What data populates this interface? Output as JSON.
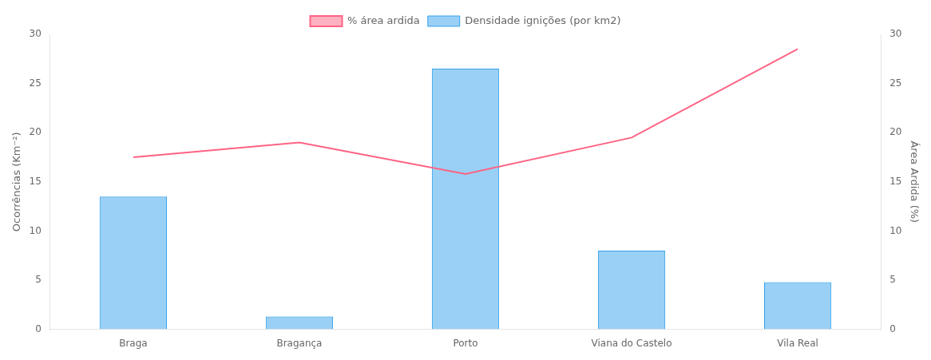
{
  "chart_data": {
    "type": "bar",
    "categories": [
      "Braga",
      "Bragança",
      "Porto",
      "Viana do Castelo",
      "Vila Real"
    ],
    "series": [
      {
        "name": "Densidade ignições (por km2)",
        "type": "bar",
        "values": [
          13.5,
          1.3,
          26.5,
          8.0,
          4.8
        ]
      },
      {
        "name": "% área ardida",
        "type": "line",
        "axis": "y2",
        "marker": "none",
        "values": [
          17.5,
          19.0,
          15.8,
          19.5,
          28.5
        ]
      }
    ],
    "ylabel": "Ocorrências (Km⁻²)",
    "y2label": "Área Ardida (%)",
    "ylim": [
      0,
      30
    ],
    "yticks": [
      0,
      5,
      10,
      15,
      20,
      25,
      30
    ],
    "y2lim": [
      0,
      30
    ],
    "y2ticks": [
      0,
      5,
      10,
      15,
      20,
      25,
      30
    ],
    "grid": false,
    "legend": "top"
  }
}
